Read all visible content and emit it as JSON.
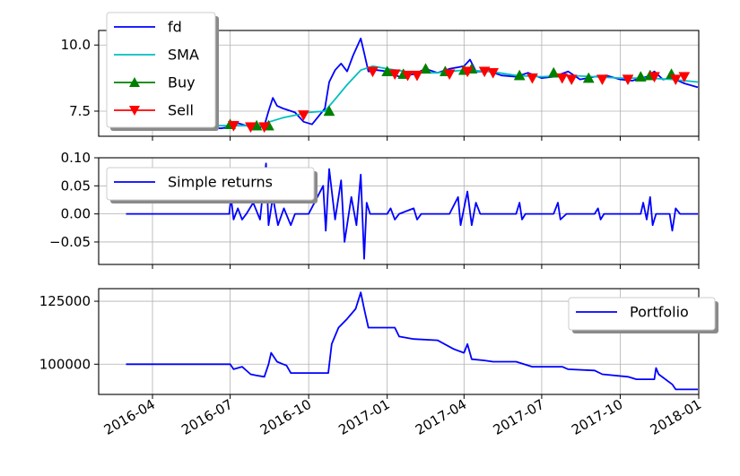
{
  "chart_data": [
    {
      "type": "line",
      "xlabel": "",
      "ylabel": "",
      "ylim": [
        6.55,
        10.55
      ],
      "grid": true,
      "legend_position": "top-left",
      "yticks": [
        7.5,
        10.0
      ],
      "ytick_labels": [
        "7.5",
        "10.0"
      ],
      "series": [
        {
          "name": "fd",
          "color": "#0000ff",
          "points": [
            [
              "2016-03-01",
              6.95
            ],
            [
              "2016-04-01",
              6.95
            ],
            [
              "2016-05-01",
              6.95
            ],
            [
              "2016-06-01",
              6.9
            ],
            [
              "2016-06-20",
              6.85
            ],
            [
              "2016-07-01",
              6.9
            ],
            [
              "2016-07-10",
              7.05
            ],
            [
              "2016-07-20",
              6.95
            ],
            [
              "2016-08-01",
              6.85
            ],
            [
              "2016-08-10",
              6.95
            ],
            [
              "2016-08-15",
              7.5
            ],
            [
              "2016-08-20",
              8.0
            ],
            [
              "2016-08-25",
              7.7
            ],
            [
              "2016-09-01",
              7.6
            ],
            [
              "2016-09-15",
              7.45
            ],
            [
              "2016-09-25",
              7.1
            ],
            [
              "2016-10-05",
              7.0
            ],
            [
              "2016-10-20",
              7.6
            ],
            [
              "2016-10-25",
              8.6
            ],
            [
              "2016-11-01",
              9.05
            ],
            [
              "2016-11-08",
              9.3
            ],
            [
              "2016-11-15",
              9.0
            ],
            [
              "2016-11-22",
              9.6
            ],
            [
              "2016-12-01",
              10.25
            ],
            [
              "2016-12-05",
              9.7
            ],
            [
              "2016-12-10",
              9.0
            ],
            [
              "2016-12-20",
              9.05
            ],
            [
              "2017-01-01",
              9.0
            ],
            [
              "2017-01-15",
              8.8
            ],
            [
              "2017-02-01",
              8.9
            ],
            [
              "2017-02-15",
              9.1
            ],
            [
              "2017-03-01",
              8.95
            ],
            [
              "2017-03-15",
              9.1
            ],
            [
              "2017-04-01",
              9.2
            ],
            [
              "2017-04-08",
              9.45
            ],
            [
              "2017-04-15",
              9.0
            ],
            [
              "2017-05-01",
              9.0
            ],
            [
              "2017-05-15",
              8.85
            ],
            [
              "2017-06-01",
              8.8
            ],
            [
              "2017-06-15",
              8.95
            ],
            [
              "2017-07-01",
              8.75
            ],
            [
              "2017-07-15",
              8.8
            ],
            [
              "2017-08-01",
              9.0
            ],
            [
              "2017-08-15",
              8.7
            ],
            [
              "2017-09-01",
              8.8
            ],
            [
              "2017-09-15",
              8.85
            ],
            [
              "2017-10-01",
              8.7
            ],
            [
              "2017-10-15",
              8.65
            ],
            [
              "2017-11-01",
              8.8
            ],
            [
              "2017-11-10",
              9.0
            ],
            [
              "2017-11-20",
              8.7
            ],
            [
              "2017-12-01",
              8.75
            ],
            [
              "2017-12-15",
              8.55
            ],
            [
              "2017-12-31",
              8.4
            ]
          ]
        },
        {
          "name": "SMA",
          "color": "#00bfbf",
          "points": [
            [
              "2016-03-01",
              6.95
            ],
            [
              "2016-06-01",
              6.95
            ],
            [
              "2016-07-01",
              6.95
            ],
            [
              "2016-08-01",
              6.95
            ],
            [
              "2016-09-01",
              7.25
            ],
            [
              "2016-10-01",
              7.45
            ],
            [
              "2016-10-20",
              7.5
            ],
            [
              "2016-11-01",
              7.95
            ],
            [
              "2016-11-15",
              8.5
            ],
            [
              "2016-12-01",
              9.05
            ],
            [
              "2016-12-15",
              9.2
            ],
            [
              "2017-01-01",
              9.1
            ],
            [
              "2017-02-01",
              8.95
            ],
            [
              "2017-03-01",
              8.95
            ],
            [
              "2017-04-01",
              9.05
            ],
            [
              "2017-05-01",
              9.0
            ],
            [
              "2017-06-01",
              8.85
            ],
            [
              "2017-07-01",
              8.8
            ],
            [
              "2017-08-01",
              8.85
            ],
            [
              "2017-09-01",
              8.8
            ],
            [
              "2017-10-01",
              8.75
            ],
            [
              "2017-11-01",
              8.75
            ],
            [
              "2017-12-01",
              8.7
            ],
            [
              "2017-12-31",
              8.6
            ]
          ]
        }
      ],
      "markers": [
        {
          "name": "Buy",
          "color": "#008000",
          "shape": "triangle-up",
          "points": [
            [
              "2016-07-01",
              7.0
            ],
            [
              "2016-08-01",
              6.95
            ],
            [
              "2016-08-15",
              6.95
            ],
            [
              "2016-10-25",
              7.5
            ],
            [
              "2017-01-01",
              9.0
            ],
            [
              "2017-01-20",
              8.9
            ],
            [
              "2017-02-15",
              9.1
            ],
            [
              "2017-03-10",
              9.0
            ],
            [
              "2017-04-01",
              9.05
            ],
            [
              "2017-04-10",
              9.1
            ],
            [
              "2017-06-05",
              8.85
            ],
            [
              "2017-07-15",
              8.95
            ],
            [
              "2017-08-25",
              8.75
            ],
            [
              "2017-10-25",
              8.8
            ],
            [
              "2017-11-05",
              8.85
            ],
            [
              "2017-11-30",
              8.9
            ]
          ]
        },
        {
          "name": "Sell",
          "color": "#ff0000",
          "shape": "triangle-down",
          "points": [
            [
              "2016-07-05",
              6.95
            ],
            [
              "2016-07-25",
              6.9
            ],
            [
              "2016-08-10",
              6.9
            ],
            [
              "2016-09-25",
              7.35
            ],
            [
              "2016-12-15",
              9.0
            ],
            [
              "2017-01-10",
              8.9
            ],
            [
              "2017-01-25",
              8.85
            ],
            [
              "2017-02-05",
              8.85
            ],
            [
              "2017-03-15",
              8.9
            ],
            [
              "2017-04-05",
              9.0
            ],
            [
              "2017-04-25",
              9.0
            ],
            [
              "2017-05-05",
              8.95
            ],
            [
              "2017-06-20",
              8.75
            ],
            [
              "2017-07-25",
              8.75
            ],
            [
              "2017-08-05",
              8.7
            ],
            [
              "2017-09-10",
              8.7
            ],
            [
              "2017-10-10",
              8.7
            ],
            [
              "2017-11-10",
              8.8
            ],
            [
              "2017-12-05",
              8.7
            ],
            [
              "2017-12-15",
              8.8
            ]
          ]
        }
      ]
    },
    {
      "type": "line",
      "xlabel": "",
      "ylabel": "",
      "ylim": [
        -0.09,
        0.1
      ],
      "grid": true,
      "legend_position": "top-left",
      "yticks": [
        -0.05,
        0.0,
        0.05,
        0.1
      ],
      "ytick_labels": [
        "−0.05",
        "0.00",
        "0.05",
        "0.10"
      ],
      "series": [
        {
          "name": "Simple returns",
          "color": "#0000ff",
          "points": [
            [
              "2016-03-01",
              0.0
            ],
            [
              "2016-06-30",
              0.0
            ],
            [
              "2016-07-02",
              0.03
            ],
            [
              "2016-07-05",
              -0.01
            ],
            [
              "2016-07-10",
              0.01
            ],
            [
              "2016-07-15",
              -0.01
            ],
            [
              "2016-07-20",
              0.0
            ],
            [
              "2016-07-28",
              0.02
            ],
            [
              "2016-08-05",
              -0.01
            ],
            [
              "2016-08-12",
              0.09
            ],
            [
              "2016-08-15",
              -0.02
            ],
            [
              "2016-08-20",
              0.03
            ],
            [
              "2016-08-26",
              -0.02
            ],
            [
              "2016-09-02",
              0.01
            ],
            [
              "2016-09-10",
              -0.02
            ],
            [
              "2016-09-15",
              0.0
            ],
            [
              "2016-10-01",
              0.0
            ],
            [
              "2016-10-18",
              0.05
            ],
            [
              "2016-10-21",
              -0.03
            ],
            [
              "2016-10-25",
              0.08
            ],
            [
              "2016-11-01",
              -0.01
            ],
            [
              "2016-11-08",
              0.06
            ],
            [
              "2016-11-12",
              -0.05
            ],
            [
              "2016-11-20",
              0.03
            ],
            [
              "2016-11-26",
              -0.02
            ],
            [
              "2016-12-01",
              0.07
            ],
            [
              "2016-12-05",
              -0.08
            ],
            [
              "2016-12-08",
              0.02
            ],
            [
              "2016-12-12",
              0.0
            ],
            [
              "2017-01-01",
              0.0
            ],
            [
              "2017-01-05",
              0.01
            ],
            [
              "2017-01-10",
              -0.01
            ],
            [
              "2017-01-15",
              0.0
            ],
            [
              "2017-02-01",
              0.01
            ],
            [
              "2017-02-05",
              -0.01
            ],
            [
              "2017-02-10",
              0.0
            ],
            [
              "2017-03-15",
              0.0
            ],
            [
              "2017-03-25",
              0.03
            ],
            [
              "2017-03-28",
              -0.02
            ],
            [
              "2017-04-05",
              0.04
            ],
            [
              "2017-04-10",
              -0.02
            ],
            [
              "2017-04-15",
              0.02
            ],
            [
              "2017-04-20",
              0.0
            ],
            [
              "2017-05-05",
              0.0
            ],
            [
              "2017-06-01",
              0.0
            ],
            [
              "2017-06-05",
              0.02
            ],
            [
              "2017-06-08",
              -0.01
            ],
            [
              "2017-06-12",
              0.0
            ],
            [
              "2017-07-15",
              0.0
            ],
            [
              "2017-07-20",
              0.02
            ],
            [
              "2017-07-23",
              -0.01
            ],
            [
              "2017-07-30",
              0.0
            ],
            [
              "2017-09-01",
              0.0
            ],
            [
              "2017-09-05",
              0.01
            ],
            [
              "2017-09-08",
              -0.01
            ],
            [
              "2017-09-12",
              0.0
            ],
            [
              "2017-10-25",
              0.0
            ],
            [
              "2017-10-28",
              0.02
            ],
            [
              "2017-11-01",
              -0.01
            ],
            [
              "2017-11-05",
              0.03
            ],
            [
              "2017-11-08",
              -0.02
            ],
            [
              "2017-11-12",
              0.0
            ],
            [
              "2017-11-28",
              0.0
            ],
            [
              "2017-12-01",
              -0.03
            ],
            [
              "2017-12-05",
              0.01
            ],
            [
              "2017-12-10",
              0.0
            ],
            [
              "2017-12-31",
              0.0
            ]
          ]
        }
      ]
    },
    {
      "type": "line",
      "xlabel": "",
      "ylabel": "",
      "ylim": [
        88000,
        130000
      ],
      "grid": true,
      "legend_position": "top-right",
      "yticks": [
        100000,
        125000
      ],
      "ytick_labels": [
        "100000",
        "125000"
      ],
      "x_tick_labels": [
        "2016-04",
        "2016-07",
        "2016-10",
        "2017-01",
        "2017-04",
        "2017-07",
        "2017-10",
        "2018-01"
      ],
      "series": [
        {
          "name": "Portfolio",
          "color": "#0000ff",
          "points": [
            [
              "2016-03-01",
              100000
            ],
            [
              "2016-07-01",
              100000
            ],
            [
              "2016-07-05",
              98000
            ],
            [
              "2016-07-15",
              99000
            ],
            [
              "2016-07-25",
              96000
            ],
            [
              "2016-08-01",
              95500
            ],
            [
              "2016-08-10",
              95000
            ],
            [
              "2016-08-15",
              100000
            ],
            [
              "2016-08-18",
              104500
            ],
            [
              "2016-08-25",
              101000
            ],
            [
              "2016-09-01",
              100000
            ],
            [
              "2016-09-05",
              99500
            ],
            [
              "2016-09-10",
              96500
            ],
            [
              "2016-10-24",
              96500
            ],
            [
              "2016-10-28",
              108000
            ],
            [
              "2016-11-05",
              114500
            ],
            [
              "2016-11-15",
              118000
            ],
            [
              "2016-11-25",
              122000
            ],
            [
              "2016-12-01",
              128500
            ],
            [
              "2016-12-05",
              122000
            ],
            [
              "2016-12-10",
              114500
            ],
            [
              "2017-01-10",
              114500
            ],
            [
              "2017-01-15",
              111000
            ],
            [
              "2017-02-01",
              110000
            ],
            [
              "2017-03-01",
              109500
            ],
            [
              "2017-03-20",
              106000
            ],
            [
              "2017-04-01",
              104500
            ],
            [
              "2017-04-05",
              108000
            ],
            [
              "2017-04-10",
              102000
            ],
            [
              "2017-04-25",
              101500
            ],
            [
              "2017-05-05",
              101000
            ],
            [
              "2017-06-01",
              101000
            ],
            [
              "2017-06-20",
              99000
            ],
            [
              "2017-07-25",
              99000
            ],
            [
              "2017-08-01",
              98000
            ],
            [
              "2017-09-01",
              97500
            ],
            [
              "2017-09-10",
              96000
            ],
            [
              "2017-10-10",
              95000
            ],
            [
              "2017-10-20",
              94000
            ],
            [
              "2017-11-10",
              94000
            ],
            [
              "2017-11-12",
              98500
            ],
            [
              "2017-11-15",
              96000
            ],
            [
              "2017-12-01",
              92000
            ],
            [
              "2017-12-05",
              90000
            ],
            [
              "2017-12-31",
              90000
            ]
          ]
        }
      ]
    }
  ]
}
